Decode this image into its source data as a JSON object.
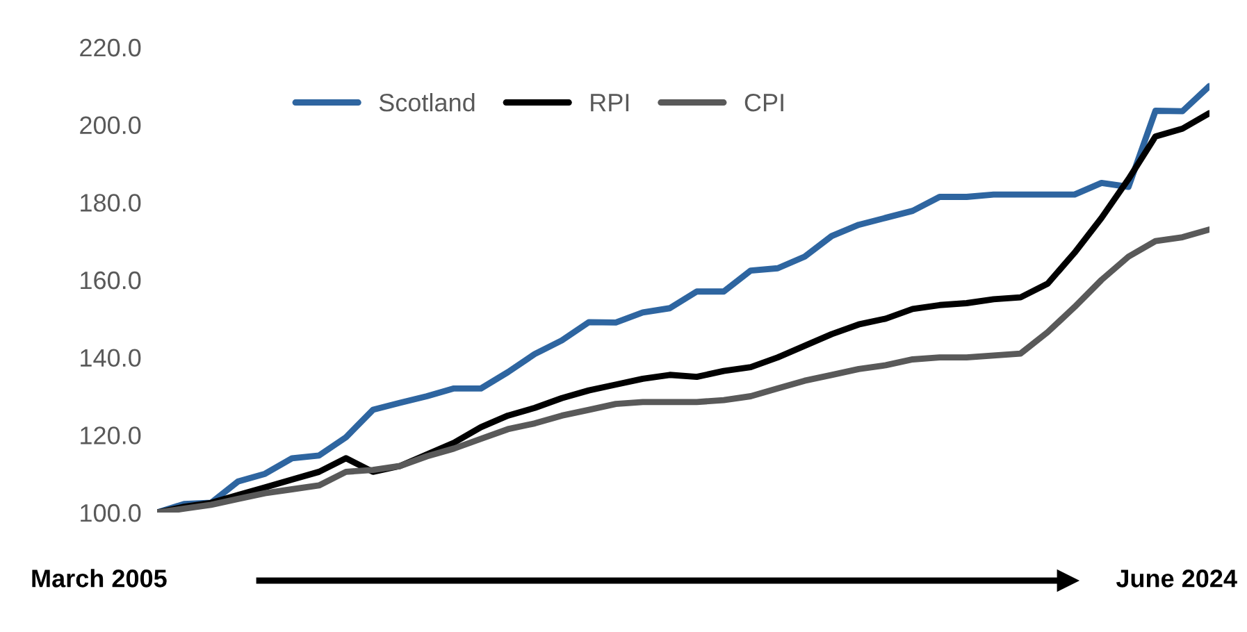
{
  "chart_data": {
    "type": "line",
    "categories": [
      null,
      null,
      null,
      null,
      null,
      null,
      null,
      null,
      null,
      null,
      null,
      null,
      null,
      null,
      null,
      null,
      null,
      null,
      null,
      null,
      null,
      null,
      null,
      null,
      null,
      null,
      null,
      null,
      null,
      null,
      null,
      null,
      null,
      null,
      null,
      null,
      null,
      null,
      null,
      null
    ],
    "series": [
      {
        "name": "Scotland",
        "color": "#2e65a0",
        "values": [
          100,
          102.2,
          102.5,
          108,
          110,
          114,
          114.7,
          119.4,
          126.5,
          128.3,
          130,
          132,
          132,
          136.2,
          140.9,
          144.4,
          149.1,
          149,
          151.6,
          152.7,
          157,
          157,
          162.4,
          163,
          166,
          171.3,
          174.2,
          176,
          177.8,
          181.4,
          181.4,
          182,
          182,
          182,
          182,
          185,
          184,
          203.6,
          203.5,
          210
        ]
      },
      {
        "name": "RPI",
        "color": "#000000",
        "values": [
          100,
          101.5,
          102.5,
          104.5,
          106.5,
          108.5,
          110.5,
          114,
          110.5,
          112,
          115,
          118,
          122,
          125,
          127,
          129.5,
          131.5,
          133,
          134.5,
          135.5,
          135,
          136.5,
          137.5,
          140,
          143,
          146,
          148.5,
          150,
          152.5,
          153.5,
          154,
          155,
          155.5,
          159,
          167,
          176,
          186,
          197,
          199,
          203
        ]
      },
      {
        "name": "CPI",
        "color": "#595959",
        "values": [
          100,
          101,
          102,
          103.5,
          105,
          106,
          107,
          110.5,
          111,
          112,
          114.5,
          116.5,
          119,
          121.5,
          123,
          125,
          126.5,
          128,
          128.5,
          128.5,
          128.5,
          129,
          130,
          132,
          134,
          135.5,
          137,
          138,
          139.5,
          140,
          140,
          140.5,
          141,
          146.5,
          153,
          160,
          166,
          170,
          171,
          173
        ]
      }
    ],
    "ylim": [
      100,
      220
    ],
    "yticks": [
      {
        "value": 100,
        "label": "100.0"
      },
      {
        "value": 120,
        "label": "120.0"
      },
      {
        "value": 140,
        "label": "140.0"
      },
      {
        "value": 160,
        "label": "160.0"
      },
      {
        "value": 180,
        "label": "180.0"
      },
      {
        "value": 200,
        "label": "200.0"
      },
      {
        "value": 220,
        "label": "220.0"
      }
    ],
    "tick_labels": "y",
    "grid": false,
    "legend": "top left",
    "marker": "none",
    "line_style": "solid",
    "annotations": [
      "March 2005",
      "June 2024"
    ]
  }
}
